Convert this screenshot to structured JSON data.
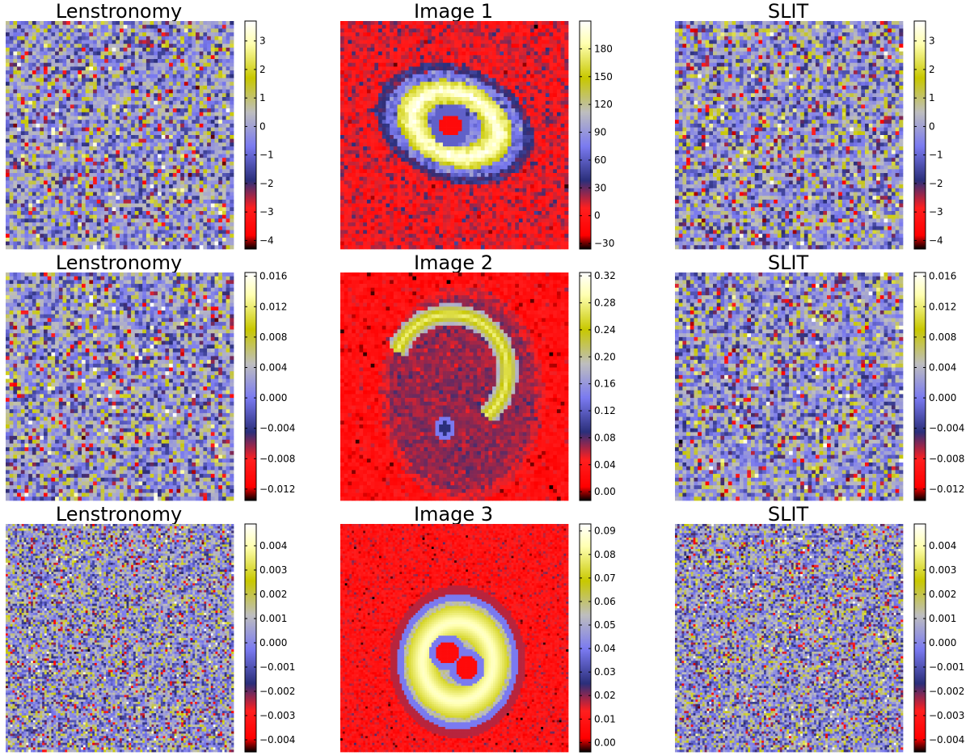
{
  "figure": {
    "colormap_stops": [
      "#000000",
      "#ff0000",
      "#ff1f1f",
      "#2b2f7a",
      "#7a7af0",
      "#bebebe",
      "#c8c800",
      "#ffffb0",
      "#ffffff"
    ],
    "rows": [
      {
        "lenstronomy": {
          "title": "Lenstronomy"
        },
        "image": {
          "title": "Image 1"
        },
        "slit": {
          "title": "SLIT"
        }
      },
      {
        "lenstronomy": {
          "title": "Lenstronomy"
        },
        "image": {
          "title": "Image 2"
        },
        "slit": {
          "title": "SLIT"
        }
      },
      {
        "lenstronomy": {
          "title": "Lenstronomy"
        },
        "image": {
          "title": "Image 3"
        },
        "slit": {
          "title": "SLIT"
        }
      }
    ]
  },
  "chart_data": [
    {
      "type": "heatmap",
      "title": "Lenstronomy",
      "row": 1,
      "col": 1,
      "content": "residual noise",
      "clim": [
        -4.3,
        3.7
      ],
      "grid_size": 60,
      "colorbar_ticks": [
        "3",
        "2",
        "1",
        "0",
        "−1",
        "−2",
        "−3",
        "−4"
      ],
      "colorbar_values": [
        3,
        2,
        1,
        0,
        -1,
        -2,
        -3,
        -4
      ]
    },
    {
      "type": "heatmap",
      "title": "Image 1",
      "row": 1,
      "col": 2,
      "content": "lensed galaxy image",
      "clim": [
        -36,
        210
      ],
      "grid_size": 60,
      "colorbar_ticks": [
        "180",
        "150",
        "120",
        "90",
        "60",
        "30",
        "0",
        "−30"
      ],
      "colorbar_values": [
        180,
        150,
        120,
        90,
        60,
        30,
        0,
        -30
      ]
    },
    {
      "type": "heatmap",
      "title": "SLIT",
      "row": 1,
      "col": 3,
      "content": "residual noise",
      "clim": [
        -4.3,
        3.7
      ],
      "grid_size": 60,
      "colorbar_ticks": [
        "3",
        "2",
        "1",
        "0",
        "−1",
        "−2",
        "−3",
        "−4"
      ],
      "colorbar_values": [
        3,
        2,
        1,
        0,
        -1,
        -2,
        -3,
        -4
      ]
    },
    {
      "type": "heatmap",
      "title": "Lenstronomy",
      "row": 2,
      "col": 1,
      "content": "residual noise",
      "clim": [
        -0.0135,
        0.0165
      ],
      "grid_size": 60,
      "colorbar_ticks": [
        "0.016",
        "0.012",
        "0.008",
        "0.004",
        "0.000",
        "−0.004",
        "−0.008",
        "−0.012"
      ],
      "colorbar_values": [
        0.016,
        0.012,
        0.008,
        0.004,
        0.0,
        -0.004,
        -0.008,
        -0.012
      ]
    },
    {
      "type": "heatmap",
      "title": "Image 2",
      "row": 2,
      "col": 2,
      "content": "lensed arc image",
      "clim": [
        -0.013,
        0.325
      ],
      "grid_size": 60,
      "colorbar_ticks": [
        "0.32",
        "0.28",
        "0.24",
        "0.20",
        "0.16",
        "0.12",
        "0.08",
        "0.04",
        "0.00"
      ],
      "colorbar_values": [
        0.32,
        0.28,
        0.24,
        0.2,
        0.16,
        0.12,
        0.08,
        0.04,
        0.0
      ]
    },
    {
      "type": "heatmap",
      "title": "SLIT",
      "row": 2,
      "col": 3,
      "content": "residual noise",
      "clim": [
        -0.0135,
        0.0165
      ],
      "grid_size": 60,
      "colorbar_ticks": [
        "0.016",
        "0.012",
        "0.008",
        "0.004",
        "0.000",
        "−0.004",
        "−0.008",
        "−0.012"
      ],
      "colorbar_values": [
        0.016,
        0.012,
        0.008,
        0.004,
        0.0,
        -0.004,
        -0.008,
        -0.012
      ]
    },
    {
      "type": "heatmap",
      "title": "Lenstronomy",
      "row": 3,
      "col": 1,
      "content": "residual noise",
      "clim": [
        -0.0045,
        0.0049
      ],
      "grid_size": 100,
      "colorbar_ticks": [
        "0.004",
        "0.003",
        "0.002",
        "0.001",
        "0.000",
        "−0.001",
        "−0.002",
        "−0.003",
        "−0.004"
      ],
      "colorbar_values": [
        0.004,
        0.003,
        0.002,
        0.001,
        0.0,
        -0.001,
        -0.002,
        -0.003,
        -0.004
      ]
    },
    {
      "type": "heatmap",
      "title": "Image 3",
      "row": 3,
      "col": 2,
      "content": "lensed ring image",
      "clim": [
        -0.004,
        0.093
      ],
      "grid_size": 100,
      "colorbar_ticks": [
        "0.09",
        "0.08",
        "0.07",
        "0.06",
        "0.05",
        "0.04",
        "0.03",
        "0.02",
        "0.01",
        "0.00"
      ],
      "colorbar_values": [
        0.09,
        0.08,
        0.07,
        0.06,
        0.05,
        0.04,
        0.03,
        0.02,
        0.01,
        0.0
      ]
    },
    {
      "type": "heatmap",
      "title": "SLIT",
      "row": 3,
      "col": 3,
      "content": "residual noise",
      "clim": [
        -0.0045,
        0.0049
      ],
      "grid_size": 100,
      "colorbar_ticks": [
        "0.004",
        "0.003",
        "0.002",
        "0.001",
        "0.000",
        "−0.001",
        "−0.002",
        "−0.003",
        "−0.004"
      ],
      "colorbar_values": [
        0.004,
        0.003,
        0.002,
        0.001,
        0.0,
        -0.001,
        -0.002,
        -0.003,
        -0.004
      ]
    }
  ]
}
